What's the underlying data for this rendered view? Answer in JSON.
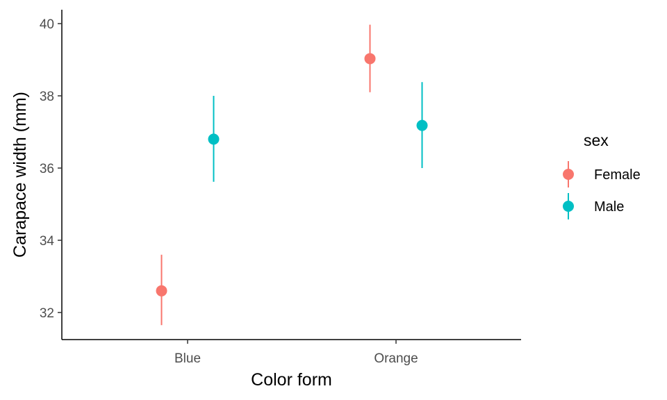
{
  "chart_data": {
    "type": "scatter",
    "title": "",
    "xlabel": "Color form",
    "ylabel": "Carapace width (mm)",
    "categories": [
      "Blue",
      "Orange"
    ],
    "ylim": [
      31.3,
      40.4
    ],
    "yticks": [
      32,
      34,
      36,
      38,
      40
    ],
    "grid": false,
    "legend": {
      "title": "sex",
      "position": "right"
    },
    "series": [
      {
        "name": "Female",
        "color": "#F8766D",
        "points": [
          {
            "category": "Blue",
            "y": 32.6,
            "low": 31.65,
            "high": 33.6
          },
          {
            "category": "Orange",
            "y": 39.03,
            "low": 38.1,
            "high": 39.97
          }
        ]
      },
      {
        "name": "Male",
        "color": "#00BFC4",
        "points": [
          {
            "category": "Blue",
            "y": 36.8,
            "low": 35.62,
            "high": 38.0
          },
          {
            "category": "Orange",
            "y": 37.18,
            "low": 36.0,
            "high": 38.38
          }
        ]
      }
    ]
  }
}
